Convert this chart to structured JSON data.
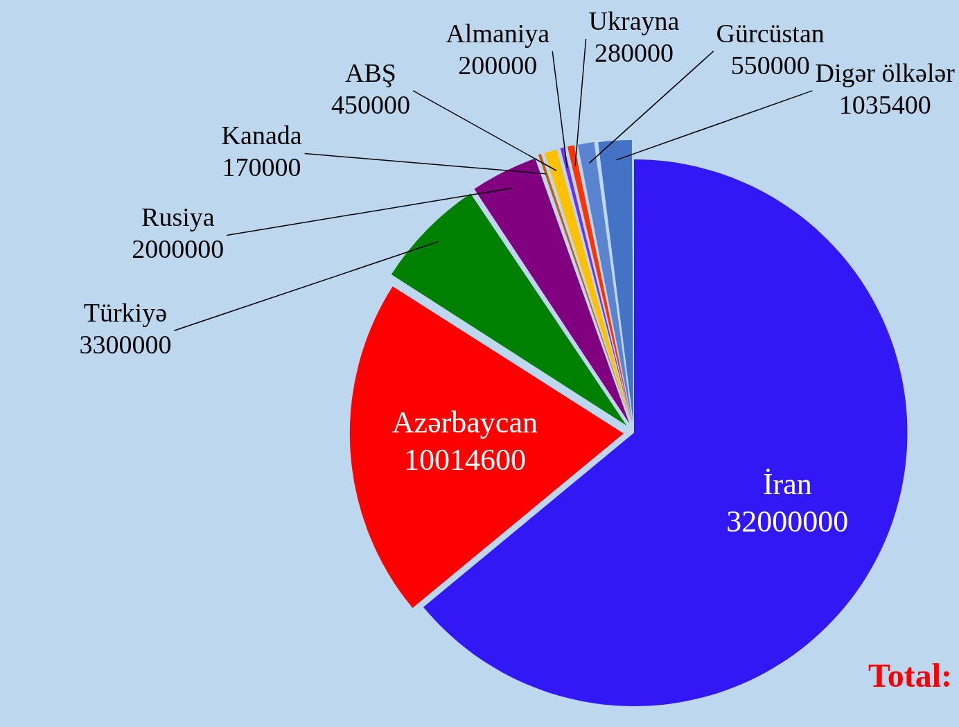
{
  "chart_data": {
    "type": "pie",
    "categories": [
      "İran",
      "Azərbaycan",
      "Türkiyə",
      "Rusiya",
      "Kanada",
      "ABŞ",
      "Almaniya",
      "Ukrayna",
      "Gürcüstan",
      "Digər ölkələr"
    ],
    "values": [
      32000000,
      10014600,
      3300000,
      2000000,
      170000,
      450000,
      200000,
      280000,
      550000,
      1035400
    ],
    "colors": [
      "#3118f5",
      "#ff0000",
      "#008000",
      "#800080",
      "#c55a11",
      "#ffc000",
      "#7030f0",
      "#ff3300",
      "#5b84d0",
      "#4472c4"
    ],
    "data_labels": true,
    "legend": false,
    "annotations": [
      "Total:"
    ]
  }
}
